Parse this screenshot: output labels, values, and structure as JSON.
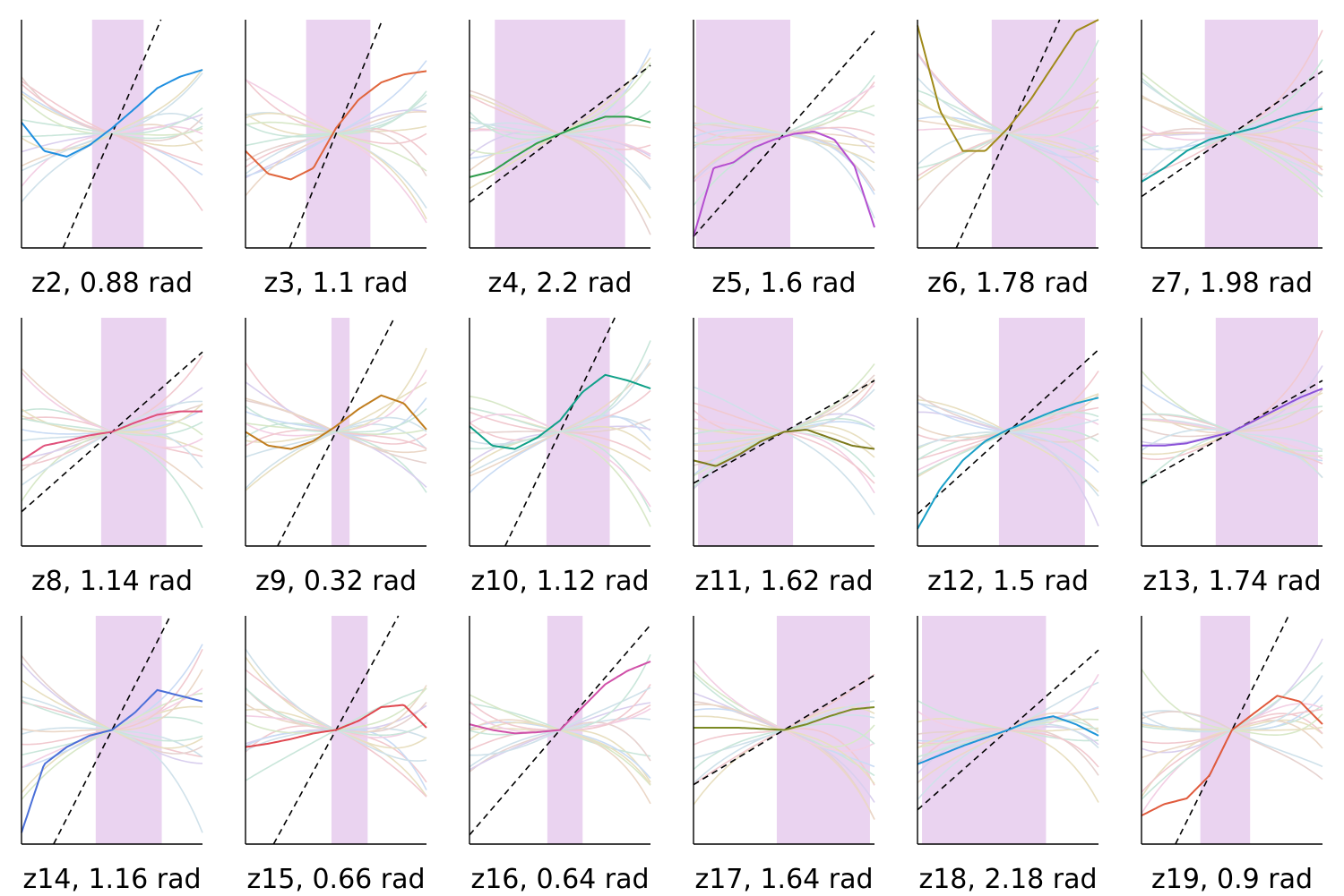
{
  "figure": {
    "background": "#ffffff",
    "shade_color": "#ead3f0",
    "diagonal_color": "#000000",
    "background_palette": [
      "#e8dfc0",
      "#f1c9cf",
      "#cfe1ea",
      "#c9e6da",
      "#e6d2cf",
      "#d9cfee",
      "#c9dbf4",
      "#ebd7c7",
      "#d8e8c8",
      "#f3cfe4"
    ]
  },
  "chart_data": [
    {
      "id": "z2",
      "label": "z2, 0.88 rad",
      "type": "line",
      "shade": [
        -0.22,
        0.35
      ],
      "identity_slope": 1.85,
      "highlight": {
        "color": "#1f8fe0",
        "values": [
          0.1,
          -0.15,
          -0.2,
          -0.1,
          0.05,
          0.22,
          0.4,
          0.5,
          0.56
        ]
      },
      "ylim": [
        -1,
        1
      ]
    },
    {
      "id": "z3",
      "label": "z3, 1.1 rad",
      "type": "line",
      "shade": [
        -0.33,
        0.38
      ],
      "identity_slope": 1.95,
      "highlight": {
        "color": "#e0653c",
        "values": [
          -0.15,
          -0.35,
          -0.4,
          -0.3,
          0.05,
          0.3,
          0.45,
          0.52,
          0.55
        ]
      },
      "ylim": [
        -1,
        1
      ]
    },
    {
      "id": "z4",
      "label": "z4, 2.2 rad",
      "type": "line",
      "shade": [
        -0.72,
        0.72
      ],
      "identity_slope": 0.6,
      "highlight": {
        "color": "#2f9e4c",
        "values": [
          -0.38,
          -0.33,
          -0.2,
          -0.08,
          0.0,
          0.08,
          0.15,
          0.15,
          0.1
        ]
      },
      "ylim": [
        -1,
        1
      ]
    },
    {
      "id": "z5",
      "label": "z5, 1.6 rad",
      "type": "line",
      "shade": [
        -0.97,
        0.07
      ],
      "identity_slope": 0.9,
      "highlight": {
        "color": "#b44fd0",
        "values": [
          -0.9,
          -0.3,
          -0.25,
          -0.12,
          -0.05,
          0.0,
          0.02,
          -0.05,
          -0.28,
          -0.82
        ]
      },
      "ylim": [
        -1,
        1
      ]
    },
    {
      "id": "z6",
      "label": "z6, 1.78 rad",
      "type": "line",
      "shade": [
        -0.18,
        0.97
      ],
      "identity_slope": 1.75,
      "highlight": {
        "color": "#a08a1a",
        "values": [
          0.95,
          0.2,
          -0.15,
          -0.15,
          0.05,
          0.3,
          0.6,
          0.9,
          1.0
        ]
      },
      "ylim": [
        -1,
        1
      ]
    },
    {
      "id": "z7",
      "label": "z7, 1.98 rad",
      "type": "line",
      "shade": [
        -0.3,
        0.95
      ],
      "identity_slope": 0.55,
      "highlight": {
        "color": "#14a0a0",
        "values": [
          -0.42,
          -0.3,
          -0.15,
          -0.05,
          0.0,
          0.05,
          0.12,
          0.18,
          0.22
        ]
      },
      "ylim": [
        -1,
        1
      ]
    },
    {
      "id": "z8",
      "label": "z8, 1.14 rad",
      "type": "line",
      "shade": [
        -0.12,
        0.6
      ],
      "identity_slope": 0.7,
      "highlight": {
        "color": "#e0507a",
        "values": [
          -0.25,
          -0.12,
          -0.08,
          -0.03,
          0.0,
          0.08,
          0.15,
          0.18,
          0.18
        ]
      },
      "ylim": [
        -1,
        1
      ]
    },
    {
      "id": "z9",
      "label": "z9, 0.32 rad",
      "type": "line",
      "shade": [
        -0.05,
        0.15
      ],
      "identity_slope": 1.55,
      "highlight": {
        "color": "#c07d1e",
        "values": [
          0.0,
          -0.12,
          -0.15,
          -0.08,
          0.05,
          0.2,
          0.32,
          0.25,
          0.02
        ]
      },
      "ylim": [
        -1,
        1
      ]
    },
    {
      "id": "z10",
      "label": "z10, 1.12 rad",
      "type": "line",
      "shade": [
        -0.15,
        0.55
      ],
      "identity_slope": 1.65,
      "highlight": {
        "color": "#10a088",
        "values": [
          0.05,
          -0.12,
          -0.15,
          -0.05,
          0.1,
          0.35,
          0.5,
          0.45,
          0.38
        ]
      },
      "ylim": [
        -1,
        1
      ]
    },
    {
      "id": "z11",
      "label": "z11, 1.62 rad",
      "type": "line",
      "shade": [
        -0.95,
        0.1
      ],
      "identity_slope": 0.45,
      "highlight": {
        "color": "#7d7a1c",
        "values": [
          -0.25,
          -0.3,
          -0.2,
          -0.08,
          0.0,
          0.02,
          -0.05,
          -0.12,
          -0.15
        ]
      },
      "ylim": [
        -1,
        1
      ]
    },
    {
      "id": "z12",
      "label": "z12, 1.5 rad",
      "type": "line",
      "shade": [
        -0.1,
        0.85
      ],
      "identity_slope": 0.72,
      "highlight": {
        "color": "#1aa0c8",
        "values": [
          -0.85,
          -0.5,
          -0.25,
          -0.08,
          0.02,
          0.1,
          0.18,
          0.25,
          0.3
        ]
      },
      "ylim": [
        -1,
        1
      ]
    },
    {
      "id": "z13",
      "label": "z13, 1.74 rad",
      "type": "line",
      "shade": [
        -0.18,
        0.95
      ],
      "identity_slope": 0.45,
      "highlight": {
        "color": "#8a52d8",
        "values": [
          -0.12,
          -0.12,
          -0.1,
          -0.05,
          0.0,
          0.1,
          0.2,
          0.3,
          0.38
        ]
      },
      "ylim": [
        -1,
        1
      ]
    },
    {
      "id": "z14",
      "label": "z14, 1.16 rad",
      "type": "line",
      "shade": [
        -0.18,
        0.55
      ],
      "identity_slope": 1.55,
      "highlight": {
        "color": "#4a6fd8",
        "values": [
          -0.9,
          -0.3,
          -0.15,
          -0.05,
          0.0,
          0.15,
          0.35,
          0.3,
          0.25
        ]
      },
      "ylim": [
        -1,
        1
      ]
    },
    {
      "id": "z15",
      "label": "z15, 0.66 rad",
      "type": "line",
      "shade": [
        -0.05,
        0.35
      ],
      "identity_slope": 1.45,
      "highlight": {
        "color": "#e04850",
        "values": [
          -0.15,
          -0.12,
          -0.08,
          -0.03,
          0.0,
          0.08,
          0.2,
          0.22,
          0.02
        ]
      },
      "ylim": [
        -1,
        1
      ]
    },
    {
      "id": "z16",
      "label": "z16, 0.64 rad",
      "type": "line",
      "shade": [
        -0.14,
        0.25
      ],
      "identity_slope": 0.92,
      "highlight": {
        "color": "#d050a8",
        "values": [
          0.05,
          0.0,
          -0.03,
          -0.02,
          0.0,
          0.2,
          0.4,
          0.52,
          0.6
        ]
      },
      "ylim": [
        -1,
        1
      ]
    },
    {
      "id": "z17",
      "label": "z17, 1.64 rad",
      "type": "line",
      "shade": [
        -0.08,
        0.95
      ],
      "identity_slope": 0.48,
      "highlight": {
        "color": "#7b8a24",
        "values": [
          0.02,
          0.02,
          0.02,
          0.01,
          0.0,
          0.05,
          0.12,
          0.18,
          0.2
        ]
      },
      "ylim": [
        -1,
        1
      ]
    },
    {
      "id": "z18",
      "label": "z18, 2.18 rad",
      "type": "line",
      "shade": [
        -0.95,
        0.42
      ],
      "identity_slope": 0.7,
      "highlight": {
        "color": "#1f95d8",
        "values": [
          -0.3,
          -0.22,
          -0.14,
          -0.07,
          0.0,
          0.08,
          0.12,
          0.05,
          -0.05
        ]
      },
      "ylim": [
        -1,
        1
      ]
    },
    {
      "id": "z19",
      "label": "z19, 0.9 rad",
      "type": "line",
      "shade": [
        -0.35,
        0.2
      ],
      "identity_slope": 1.6,
      "highlight": {
        "color": "#e05a3c",
        "values": [
          -0.75,
          -0.65,
          -0.6,
          -0.4,
          0.0,
          0.15,
          0.3,
          0.25,
          0.05
        ]
      },
      "ylim": [
        -1,
        1
      ]
    }
  ]
}
